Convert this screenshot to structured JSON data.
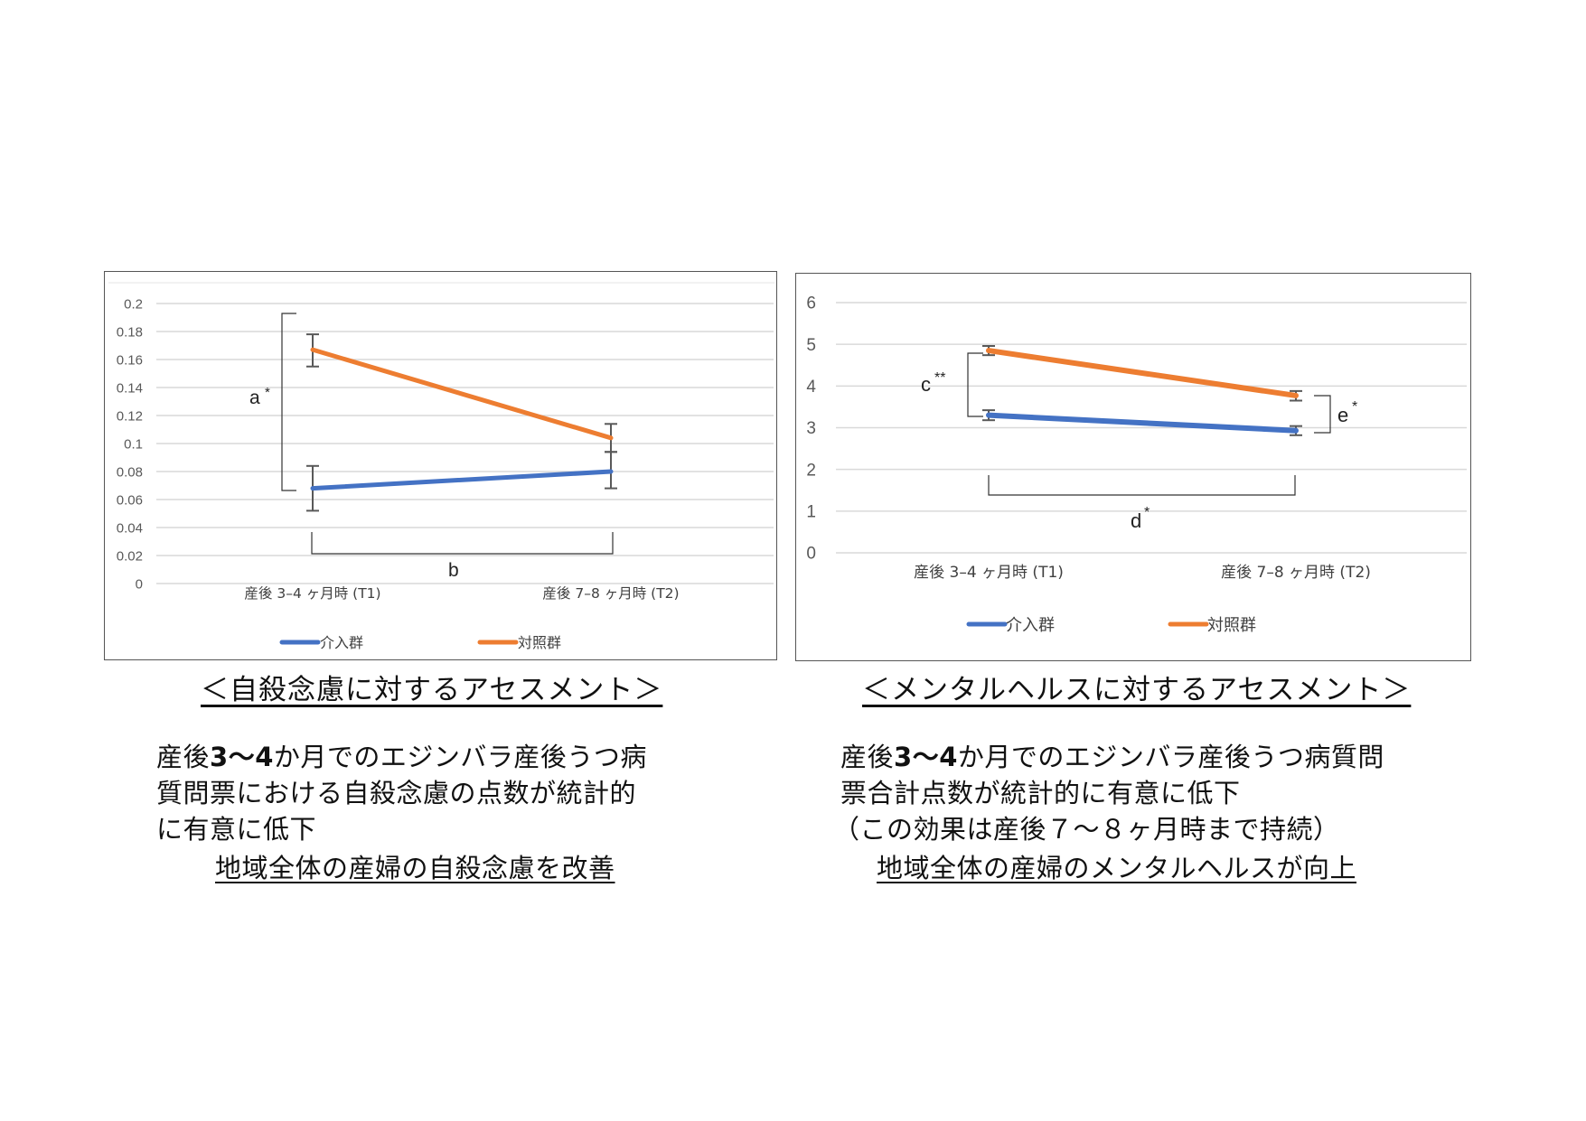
{
  "colors": {
    "intervention": "#4472C4",
    "control": "#ED7D31",
    "grid": "#D9D9D9",
    "error_bar": "#595959",
    "border": "#555555"
  },
  "chart_data": [
    {
      "type": "line",
      "title": "",
      "xlabel": "",
      "ylabel": "",
      "ylim": [
        0,
        0.2
      ],
      "yticks": [
        "0",
        "0.02",
        "0.04",
        "0.06",
        "0.08",
        "0.1",
        "0.12",
        "0.14",
        "0.16",
        "0.18",
        "0.2"
      ],
      "categories": [
        "産後 3–4 ヶ月時 (T1)",
        "産後 7–8 ヶ月時 (T2)"
      ],
      "series": [
        {
          "name": "介入群",
          "color": "#4472C4",
          "values": [
            0.068,
            0.08
          ],
          "error_low": [
            0.052,
            0.068
          ],
          "error_high": [
            0.084,
            0.094
          ]
        },
        {
          "name": "対照群",
          "color": "#ED7D31",
          "values": [
            0.167,
            0.104
          ],
          "error_low": [
            0.155,
            0.094
          ],
          "error_high": [
            0.178,
            0.114
          ]
        }
      ],
      "annotations": [
        {
          "label": "a *",
          "between": "介入群 vs 対照群 at T1"
        },
        {
          "label": "b",
          "between": "T1 vs T2 (介入群)"
        }
      ],
      "grid": true,
      "legend_position": "bottom"
    },
    {
      "type": "line",
      "title": "",
      "xlabel": "",
      "ylabel": "",
      "ylim": [
        0,
        6
      ],
      "yticks": [
        "0",
        "1",
        "2",
        "3",
        "4",
        "5",
        "6"
      ],
      "categories": [
        "産後 3–4 ヶ月時 (T1)",
        "産後 7–8 ヶ月時 (T2)"
      ],
      "series": [
        {
          "name": "介入群",
          "color": "#4472C4",
          "values": [
            3.3,
            2.93
          ],
          "error_low": [
            3.18,
            2.82
          ],
          "error_high": [
            3.42,
            3.04
          ]
        },
        {
          "name": "対照群",
          "color": "#ED7D31",
          "values": [
            4.85,
            3.77
          ],
          "error_low": [
            4.74,
            3.65
          ],
          "error_high": [
            4.96,
            3.88
          ]
        }
      ],
      "annotations": [
        {
          "label": "c **",
          "between": "介入群 vs 対照群 at T1"
        },
        {
          "label": "d *",
          "between": "T1 vs T2 (介入群)"
        },
        {
          "label": "e *",
          "between": "介入群 vs 対照群 at T2"
        }
      ],
      "grid": true,
      "legend_position": "bottom"
    }
  ],
  "left": {
    "legend": {
      "intervention": "介入群",
      "control": "対照群"
    },
    "annot_a": "a",
    "annot_a_star": "*",
    "annot_b": "b",
    "caption": "＜自殺念慮に対するアセスメント＞",
    "desc_pre": "産後",
    "desc_bold": "3〜4",
    "desc_line1_rest": "か月でのエジンバラ産後うつ病",
    "desc_line2": "質問票における自殺念慮の点数が統計的",
    "desc_line3": "に有意に低下",
    "conclusion": "地域全体の産婦の自殺念慮を改善"
  },
  "right": {
    "legend": {
      "intervention": "介入群",
      "control": "対照群"
    },
    "annot_c": "c",
    "annot_c_star": "**",
    "annot_d": "d",
    "annot_d_star": "*",
    "annot_e": "e",
    "annot_e_star": "*",
    "caption": "＜メンタルヘルスに対するアセスメント＞",
    "desc_pre": "産後",
    "desc_bold": "3〜4",
    "desc_line1_rest": "か月でのエジンバラ産後うつ病質問",
    "desc_line2": "票合計点数が統計的に有意に低下",
    "desc_line3": "（この効果は産後７〜８ヶ月時まで持続）",
    "conclusion": "地域全体の産婦のメンタルヘルスが向上"
  }
}
